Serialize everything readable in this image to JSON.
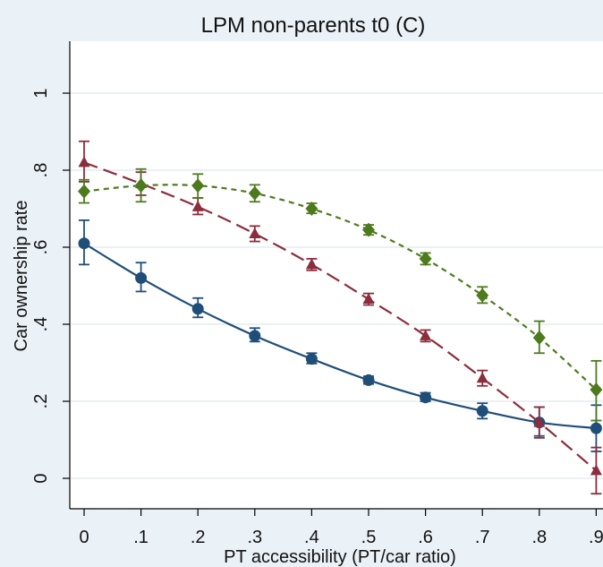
{
  "chart_data": {
    "type": "line",
    "title": "LPM non-parents t0 (C)",
    "xlabel": "PT accessibility (PT/car ratio)",
    "ylabel": "Car ownership rate",
    "x": [
      0,
      0.1,
      0.2,
      0.3,
      0.4,
      0.5,
      0.6,
      0.7,
      0.8,
      0.9
    ],
    "x_tick_labels": [
      "0",
      ".1",
      ".2",
      ".3",
      ".4",
      ".5",
      ".6",
      ".7",
      ".8",
      ".9"
    ],
    "y_ticks": [
      0,
      0.2,
      0.4,
      0.6,
      0.8,
      1
    ],
    "y_tick_labels": [
      "0",
      ".2",
      ".4",
      ".6",
      ".8",
      "1"
    ],
    "xlim": [
      0,
      0.9
    ],
    "ylim": [
      0,
      1
    ],
    "grid": true,
    "legend": false,
    "series": [
      {
        "marker": "circle",
        "line_style": "solid",
        "color": "#1f4e79",
        "values": [
          0.61,
          0.52,
          0.44,
          0.37,
          0.31,
          0.255,
          0.21,
          0.175,
          0.145,
          0.13
        ],
        "ci_low": [
          0.555,
          0.485,
          0.418,
          0.355,
          0.298,
          0.245,
          0.2,
          0.155,
          0.11,
          0.07
        ],
        "ci_high": [
          0.67,
          0.56,
          0.468,
          0.39,
          0.325,
          0.265,
          0.222,
          0.195,
          0.185,
          0.19
        ]
      },
      {
        "marker": "triangle",
        "line_style": "dashed",
        "color": "#8c2d3c",
        "values": [
          0.82,
          0.765,
          0.705,
          0.635,
          0.555,
          0.465,
          0.37,
          0.26,
          0.145,
          0.02
        ],
        "ci_low": [
          0.77,
          0.735,
          0.685,
          0.615,
          0.54,
          0.45,
          0.355,
          0.24,
          0.105,
          -0.04
        ],
        "ci_high": [
          0.875,
          0.795,
          0.728,
          0.655,
          0.57,
          0.48,
          0.385,
          0.28,
          0.185,
          0.08
        ]
      },
      {
        "marker": "diamond",
        "line_style": "dotted",
        "color": "#4e7a1e",
        "values": [
          0.745,
          0.76,
          0.76,
          0.74,
          0.7,
          0.645,
          0.57,
          0.475,
          0.365,
          0.23
        ],
        "ci_low": [
          0.715,
          0.718,
          0.728,
          0.718,
          0.688,
          0.632,
          0.555,
          0.455,
          0.325,
          0.15
        ],
        "ci_high": [
          0.775,
          0.803,
          0.79,
          0.762,
          0.714,
          0.658,
          0.585,
          0.497,
          0.408,
          0.305
        ]
      }
    ]
  }
}
